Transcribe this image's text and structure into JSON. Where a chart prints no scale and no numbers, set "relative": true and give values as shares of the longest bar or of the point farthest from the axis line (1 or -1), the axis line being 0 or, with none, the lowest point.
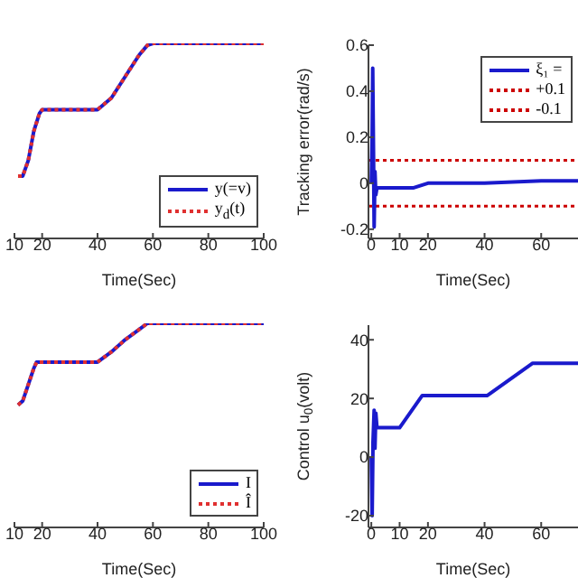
{
  "chart_data": [
    {
      "type": "line",
      "xlabel": "Time(Sec)",
      "relative": true,
      "x": [
        11.3,
        13,
        15,
        17,
        19,
        20,
        40,
        45,
        50,
        55,
        58,
        60,
        100
      ],
      "xlim": [
        10,
        100
      ],
      "xticks": [
        10,
        20,
        40,
        60,
        80,
        100
      ],
      "legend": "bottom right",
      "marker": "none",
      "series": [
        {
          "name": "y(=v)",
          "color": "#1a1acc",
          "values": [
            0.32,
            0.32,
            0.4,
            0.55,
            0.64,
            0.66,
            0.66,
            0.72,
            0.83,
            0.94,
            0.99,
            1,
            1
          ]
        },
        {
          "name": "y$_{d}$(t)",
          "color": "#e03030",
          "line_style": "dotted",
          "values": [
            0.32,
            0.32,
            0.4,
            0.55,
            0.64,
            0.66,
            0.66,
            0.72,
            0.83,
            0.94,
            0.99,
            1,
            1
          ]
        }
      ]
    },
    {
      "type": "line",
      "xlabel": "Time(Sec)",
      "ylabel": "Tracking error(rad/s)",
      "x": [
        0,
        0.3,
        0.5,
        0.8,
        1.0,
        1.3,
        1.6,
        2,
        5,
        10,
        15,
        20,
        40,
        60,
        73
      ],
      "xlim": [
        -1,
        73
      ],
      "xticks": [
        0,
        10,
        20,
        40,
        60
      ],
      "ylim": [
        -0.24,
        0.6
      ],
      "yticks": [
        -0.2,
        0,
        0.2,
        0.4,
        0.6
      ],
      "legend": "top right",
      "marker": "none",
      "series": [
        {
          "name": "ξ₁ =",
          "color": "#1a1acc",
          "values": [
            0,
            0.2,
            0.5,
            0.1,
            -0.19,
            0.05,
            -0.05,
            -0.02,
            -0.02,
            -0.02,
            -0.02,
            0,
            0,
            0.01,
            0.01
          ]
        }
      ],
      "ref_lines": [
        {
          "axis": "y",
          "value": 0.1,
          "label": "+0.1",
          "color": "#cc0000",
          "line_style": "dotted"
        },
        {
          "axis": "y",
          "value": -0.1,
          "label": "-0.1",
          "color": "#cc0000",
          "line_style": "dotted"
        }
      ]
    },
    {
      "type": "line",
      "xlabel": "Time(Sec)",
      "relative": true,
      "x": [
        11.3,
        13,
        15,
        17,
        18,
        40,
        45,
        50,
        55,
        58,
        100
      ],
      "xlim": [
        10,
        100
      ],
      "xticks": [
        10,
        20,
        40,
        60,
        80,
        100
      ],
      "legend": "bottom right",
      "marker": "none",
      "series": [
        {
          "name": "I",
          "color": "#1a1acc",
          "values": [
            0.6,
            0.62,
            0.7,
            0.78,
            0.81,
            0.81,
            0.86,
            0.92,
            0.97,
            1,
            1
          ]
        },
        {
          "name": "Î",
          "color": "#e03030",
          "line_style": "dotted",
          "values": [
            0.6,
            0.62,
            0.7,
            0.78,
            0.81,
            0.81,
            0.86,
            0.92,
            0.97,
            1,
            1
          ]
        }
      ]
    },
    {
      "type": "line",
      "xlabel": "Time(Sec)",
      "ylabel": "Control u$_{0}$(volt)",
      "x": [
        0,
        0.3,
        0.6,
        1,
        1.3,
        1.6,
        2,
        10,
        18,
        41,
        57,
        73
      ],
      "xlim": [
        -1,
        73
      ],
      "xticks": [
        0,
        10,
        20,
        40,
        60
      ],
      "ylim": [
        -24,
        45
      ],
      "yticks": [
        -20,
        0,
        20,
        40
      ],
      "marker": "none",
      "series": [
        {
          "color": "#1a1acc",
          "values": [
            0,
            -20,
            5,
            16,
            3,
            15,
            10,
            10,
            21,
            21,
            32,
            32
          ]
        }
      ]
    }
  ]
}
